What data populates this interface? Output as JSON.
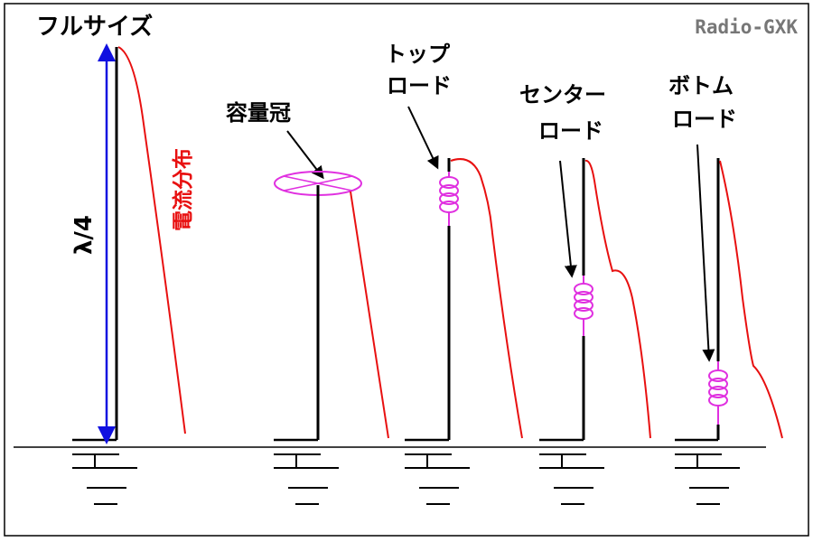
{
  "colors": {
    "antenna": "#000000",
    "current": "#e81010",
    "coil": "#e030e0",
    "dimension": "#1010e0",
    "frame": "#000000"
  },
  "watermark": "Radio-GXK",
  "dimension_label": "λ/4",
  "current_label": "電流分布",
  "antennas": [
    {
      "id": "full-size",
      "label_lines": [
        "フルサイズ"
      ],
      "loading": "none"
    },
    {
      "id": "capacity-hat",
      "label_lines": [
        "容量冠"
      ],
      "loading": "capacity-hat"
    },
    {
      "id": "top-load",
      "label_lines": [
        "トップ",
        "ロード"
      ],
      "loading": "coil-top"
    },
    {
      "id": "center-load",
      "label_lines": [
        "センター",
        "ロード"
      ],
      "loading": "coil-center"
    },
    {
      "id": "bottom-load",
      "label_lines": [
        "ボトム",
        "ロード"
      ],
      "loading": "coil-bottom"
    }
  ]
}
